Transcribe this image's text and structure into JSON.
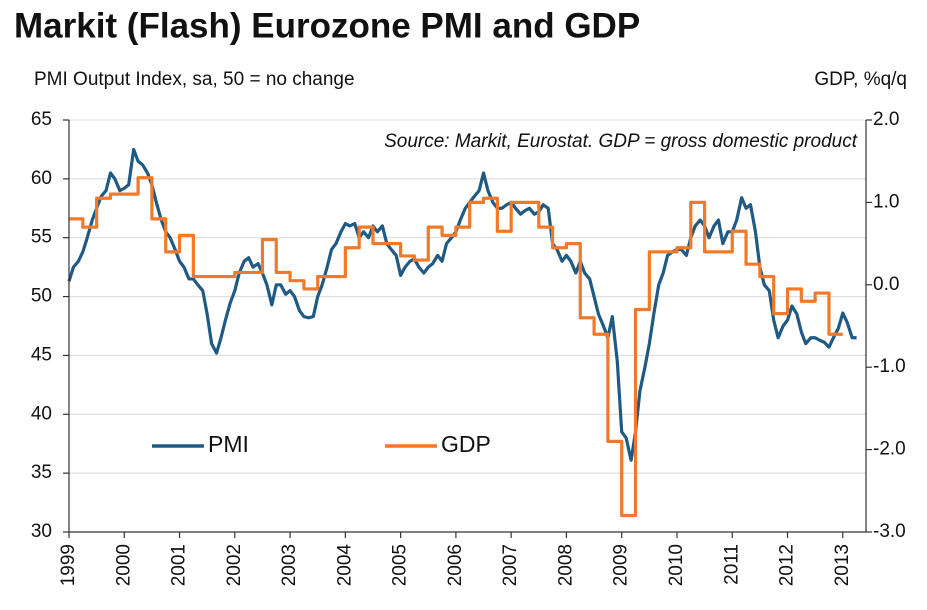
{
  "chart_data": {
    "type": "line",
    "title": "Markit (Flash) Eurozone PMI and GDP",
    "y_label": "PMI Output Index, sa, 50 = no change",
    "y2_label": "GDP, %q/q",
    "annotation": "Source: Markit, Eurostat. GDP = gross domestic product",
    "xlim": [
      1999,
      2013.42
    ],
    "xticks": [
      1999,
      2000,
      2001,
      2002,
      2003,
      2004,
      2005,
      2006,
      2007,
      2008,
      2009,
      2010,
      2011,
      2012,
      2013
    ],
    "ylim": [
      30,
      65
    ],
    "yticks": [
      30,
      35,
      40,
      45,
      50,
      55,
      60,
      65
    ],
    "y2lim": [
      -3,
      2
    ],
    "y2ticks": [
      {
        "value": -3,
        "label": "-3.0"
      },
      {
        "value": -2,
        "label": "-2.0"
      },
      {
        "value": -1,
        "label": "-1.0"
      },
      {
        "value": 0,
        "label": "0.0"
      },
      {
        "value": 1,
        "label": "1.0"
      },
      {
        "value": 2,
        "label": "2.0"
      }
    ],
    "grid": true,
    "legend": "lower left",
    "series": [
      {
        "name": "PMI",
        "color": "#1f5a85",
        "x": [
          1999,
          1999.08,
          1999.17,
          1999.25,
          1999.33,
          1999.42,
          1999.5,
          1999.58,
          1999.67,
          1999.75,
          1999.83,
          1999.92,
          2000,
          2000.08,
          2000.17,
          2000.25,
          2000.33,
          2000.42,
          2000.5,
          2000.58,
          2000.67,
          2000.75,
          2000.83,
          2000.92,
          2001,
          2001.08,
          2001.17,
          2001.25,
          2001.33,
          2001.42,
          2001.5,
          2001.58,
          2001.67,
          2001.75,
          2001.83,
          2001.92,
          2002,
          2002.08,
          2002.17,
          2002.25,
          2002.33,
          2002.42,
          2002.5,
          2002.58,
          2002.67,
          2002.75,
          2002.83,
          2002.92,
          2003,
          2003.08,
          2003.17,
          2003.25,
          2003.33,
          2003.42,
          2003.5,
          2003.58,
          2003.67,
          2003.75,
          2003.83,
          2003.92,
          2004,
          2004.08,
          2004.17,
          2004.25,
          2004.33,
          2004.42,
          2004.5,
          2004.58,
          2004.67,
          2004.75,
          2004.83,
          2004.92,
          2005,
          2005.08,
          2005.17,
          2005.25,
          2005.33,
          2005.42,
          2005.5,
          2005.58,
          2005.67,
          2005.75,
          2005.83,
          2005.92,
          2006,
          2006.08,
          2006.17,
          2006.25,
          2006.33,
          2006.42,
          2006.5,
          2006.58,
          2006.67,
          2006.75,
          2006.83,
          2006.92,
          2007,
          2007.08,
          2007.17,
          2007.25,
          2007.33,
          2007.42,
          2007.5,
          2007.58,
          2007.67,
          2007.75,
          2007.83,
          2007.92,
          2008,
          2008.08,
          2008.17,
          2008.25,
          2008.33,
          2008.42,
          2008.5,
          2008.58,
          2008.67,
          2008.75,
          2008.83,
          2008.92,
          2009,
          2009.08,
          2009.17,
          2009.25,
          2009.33,
          2009.42,
          2009.5,
          2009.58,
          2009.67,
          2009.75,
          2009.83,
          2009.92,
          2010,
          2010.08,
          2010.17,
          2010.25,
          2010.33,
          2010.42,
          2010.5,
          2010.58,
          2010.67,
          2010.75,
          2010.83,
          2010.92,
          2011,
          2011.08,
          2011.17,
          2011.25,
          2011.33,
          2011.42,
          2011.5,
          2011.58,
          2011.67,
          2011.75,
          2011.83,
          2011.92,
          2012,
          2012.08,
          2012.17,
          2012.25,
          2012.33,
          2012.42,
          2012.5,
          2012.58,
          2012.67,
          2012.75,
          2012.83,
          2012.92,
          2013,
          2013.08,
          2013.17,
          2013.25
        ],
        "values": [
          51.3,
          52.5,
          53,
          53.8,
          55,
          56.5,
          57.5,
          58.5,
          59,
          60.5,
          60,
          59,
          59.2,
          59.5,
          62.5,
          61.5,
          61.2,
          60.5,
          59.5,
          58,
          56.5,
          55.5,
          55,
          54,
          53,
          52.5,
          51.5,
          51.5,
          51,
          50.5,
          48.5,
          46,
          45.2,
          46.5,
          48,
          49.5,
          50.5,
          52,
          53,
          53.3,
          52.5,
          52.8,
          52,
          51,
          49.3,
          51,
          51,
          50.2,
          50.5,
          50,
          48.8,
          48.3,
          48.2,
          48.3,
          50,
          51,
          52.5,
          54,
          54.5,
          55.5,
          56.2,
          56,
          56.2,
          55,
          55.5,
          55,
          56,
          55.5,
          56,
          54.5,
          54,
          53.5,
          51.8,
          52.5,
          53,
          53.2,
          52.5,
          52,
          52.5,
          52.8,
          53.5,
          53,
          54.5,
          55,
          55.5,
          56.5,
          57.5,
          58,
          58.5,
          59,
          60.5,
          59,
          58,
          57.5,
          57.5,
          57.8,
          58,
          57.5,
          57,
          57.3,
          57.5,
          57,
          57.2,
          57.8,
          57.5,
          54.5,
          54,
          53,
          53.5,
          53,
          52,
          53,
          52,
          51.5,
          50,
          48.5,
          47.5,
          46.5,
          48.3,
          44.5,
          38.5,
          38,
          36.1,
          38.5,
          42,
          44,
          46,
          48.5,
          51,
          52,
          53.5,
          53.8,
          54,
          54,
          53.5,
          55,
          56,
          56.5,
          56,
          55,
          56,
          56.5,
          54.5,
          55.5,
          55.5,
          56.5,
          58.4,
          57.5,
          57.8,
          55.5,
          52.5,
          51,
          50.5,
          48,
          46.5,
          47.5,
          48,
          49.2,
          48.5,
          47,
          46,
          46.5,
          46.5,
          46.3,
          46.1,
          45.7,
          46.5,
          47.3,
          48.6,
          47.8,
          46.5,
          46.5
        ]
      },
      {
        "name": "GDP",
        "color": "#f07a2a",
        "axis": "y2",
        "step": true,
        "x": [
          1999,
          1999.25,
          1999.5,
          1999.75,
          2000,
          2000.25,
          2000.5,
          2000.75,
          2001,
          2001.25,
          2001.5,
          2001.75,
          2002,
          2002.25,
          2002.5,
          2002.75,
          2003,
          2003.25,
          2003.5,
          2003.75,
          2004,
          2004.25,
          2004.5,
          2004.75,
          2005,
          2005.25,
          2005.5,
          2005.75,
          2006,
          2006.25,
          2006.5,
          2006.75,
          2007,
          2007.25,
          2007.5,
          2007.75,
          2008,
          2008.25,
          2008.5,
          2008.75,
          2009,
          2009.25,
          2009.5,
          2009.75,
          2010,
          2010.25,
          2010.5,
          2010.75,
          2011,
          2011.25,
          2011.5,
          2011.75,
          2012,
          2012.25,
          2012.5,
          2012.75
        ],
        "values": [
          0.8,
          0.7,
          1.05,
          1.1,
          1.1,
          1.3,
          0.8,
          0.4,
          0.6,
          0.1,
          0.1,
          0.1,
          0.15,
          0.15,
          0.55,
          0.15,
          0.05,
          -0.05,
          0.1,
          0.1,
          0.45,
          0.7,
          0.5,
          0.5,
          0.35,
          0.3,
          0.7,
          0.6,
          0.7,
          1.0,
          1.05,
          0.65,
          1.0,
          1.0,
          0.7,
          0.45,
          0.5,
          -0.4,
          -0.6,
          -1.9,
          -2.8,
          -0.3,
          0.4,
          0.4,
          0.45,
          1.0,
          0.4,
          0.4,
          0.65,
          0.25,
          0.1,
          -0.35,
          -0.05,
          -0.2,
          -0.1,
          -0.6
        ]
      }
    ]
  }
}
